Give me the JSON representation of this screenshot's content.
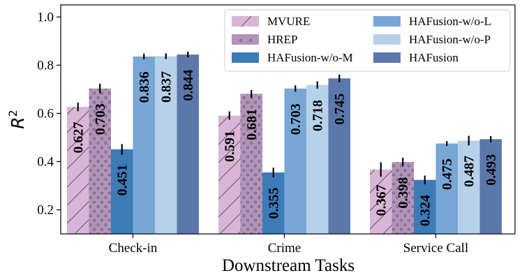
{
  "chart_data": {
    "type": "bar",
    "xlabel": "Downstream Tasks",
    "ylabel": "R",
    "ylabel_superscript": "2",
    "ylim": [
      0.1,
      1.05
    ],
    "yticks": [
      0.2,
      0.4,
      0.6,
      0.8,
      1.0
    ],
    "ytick_labels": [
      "0.2",
      "0.4",
      "0.6",
      "0.8",
      "1.0"
    ],
    "grid": false,
    "legend_position": "top-right",
    "categories": [
      "Check-in",
      "Crime",
      "Service Call"
    ],
    "series": [
      {
        "name": "MVURE",
        "values": [
          0.627,
          0.591,
          0.367
        ],
        "labels": [
          "0.627",
          "0.591",
          "0.367"
        ],
        "errors": [
          0.018,
          0.017,
          0.03
        ],
        "color": "#d9b6d6",
        "hatch": "slash"
      },
      {
        "name": "HREP",
        "values": [
          0.703,
          0.681,
          0.398
        ],
        "labels": [
          "0.703",
          "0.681",
          "0.398"
        ],
        "errors": [
          0.02,
          0.016,
          0.018
        ],
        "color": "#b294bb",
        "hatch": "dots"
      },
      {
        "name": "HAFusion-w/o-M",
        "values": [
          0.451,
          0.355,
          0.324
        ],
        "labels": [
          "0.451",
          "0.355",
          "0.324"
        ],
        "errors": [
          0.022,
          0.02,
          0.018
        ],
        "color": "#3d7ab8",
        "hatch": "none"
      },
      {
        "name": "HAFusion-w/o-L",
        "values": [
          0.836,
          0.703,
          0.475
        ],
        "labels": [
          "0.836",
          "0.703",
          "0.475"
        ],
        "errors": [
          0.012,
          0.013,
          0.01
        ],
        "color": "#78a7d6",
        "hatch": "none"
      },
      {
        "name": "HAFusion-w/o-P",
        "values": [
          0.837,
          0.718,
          0.487
        ],
        "labels": [
          "0.837",
          "0.718",
          "0.487"
        ],
        "errors": [
          0.012,
          0.015,
          0.02
        ],
        "color": "#b7d1ea",
        "hatch": "none"
      },
      {
        "name": "HAFusion",
        "values": [
          0.844,
          0.745,
          0.493
        ],
        "labels": [
          "0.844",
          "0.745",
          "0.493"
        ],
        "errors": [
          0.012,
          0.016,
          0.013
        ],
        "color": "#5b78aa",
        "hatch": "none"
      }
    ]
  }
}
